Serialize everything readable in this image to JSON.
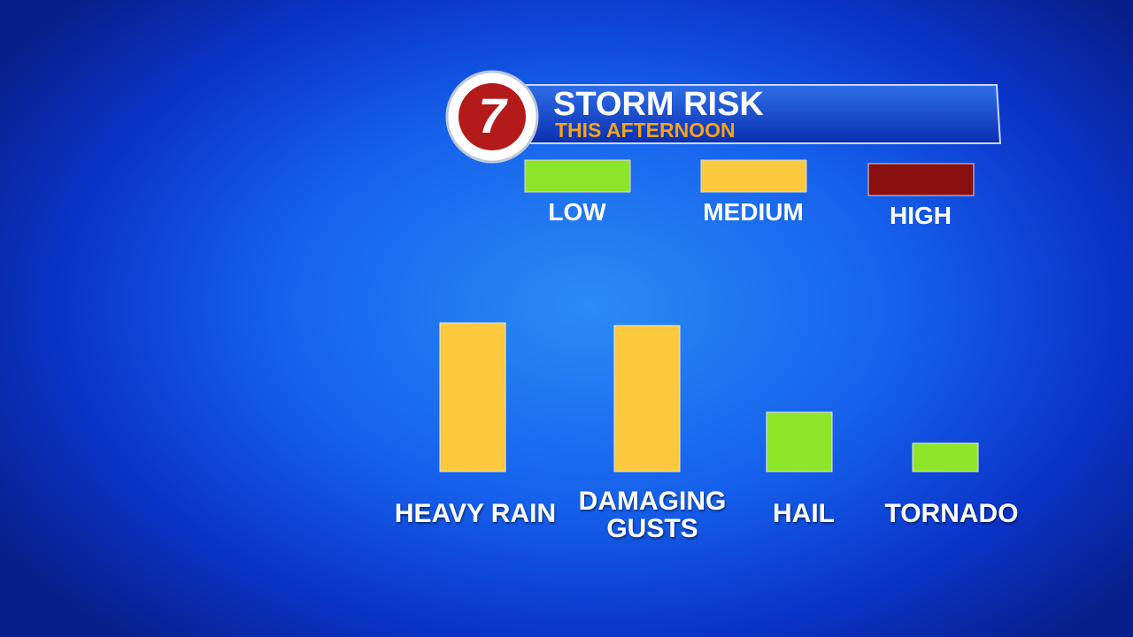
{
  "logo": "7",
  "chart_data": {
    "type": "bar",
    "title": "STORM RISK",
    "subtitle": "THIS AFTERNOON",
    "legend": [
      {
        "name": "LOW",
        "color": "#8ee62a"
      },
      {
        "name": "MEDIUM",
        "color": "#fcc93e"
      },
      {
        "name": "HIGH",
        "color": "#8a1010"
      }
    ],
    "categories": [
      "HEAVY RAIN",
      "DAMAGING GUSTS",
      "HAIL",
      "TORNADO"
    ],
    "values": [
      168,
      165,
      67,
      32
    ],
    "colors": [
      "#fcc93e",
      "#fcc93e",
      "#8ee62a",
      "#8ee62a"
    ]
  }
}
